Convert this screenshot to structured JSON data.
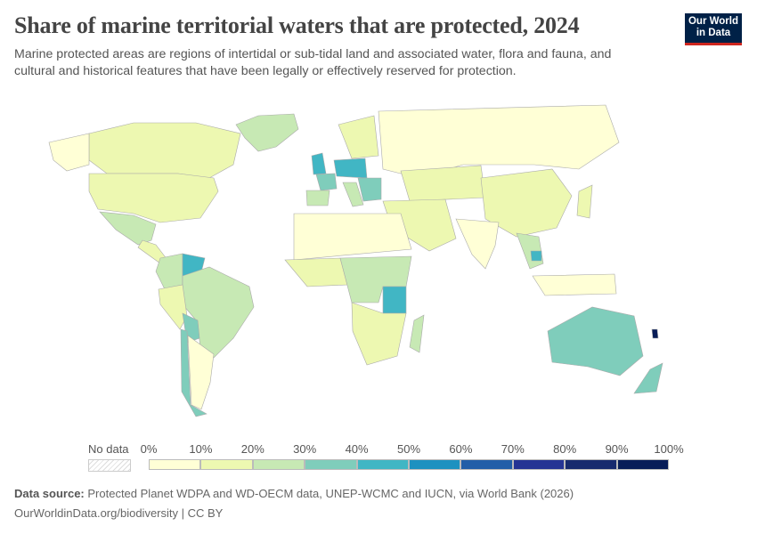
{
  "title": "Share of marine territorial waters that are protected, 2024",
  "subtitle": "Marine protected areas are regions of intertidal or sub-tidal land and associated water, flora and fauna, and cultural and historical features that have been legally or effectively reserved for protection.",
  "logo": {
    "line1": "Our World",
    "line2": "in Data"
  },
  "legend": {
    "no_data": "No data",
    "ticks": [
      "0%",
      "10%",
      "20%",
      "30%",
      "40%",
      "50%",
      "60%",
      "70%",
      "80%",
      "90%",
      "100%"
    ],
    "colors": [
      "#ffffd6",
      "#edf8b1",
      "#c7e9b4",
      "#7fcdbb",
      "#41b6c4",
      "#1d91c0",
      "#225ea8",
      "#253494",
      "#172a6e",
      "#081d58"
    ]
  },
  "footer": {
    "source_label": "Data source:",
    "source_text": "Protected Planet WDPA and WD-OECM data, UNEP-WCMC and IUCN, via World Bank (2026)",
    "url": "OurWorldinData.org/biodiversity | CC BY"
  },
  "chart_data": {
    "type": "choropleth",
    "unit": "%",
    "scale": [
      0,
      100
    ],
    "bin_step": 10,
    "values": {
      "Greenland": 25,
      "Canada": 10,
      "Alaska (US)": 5,
      "United States": 15,
      "Mexico": 22,
      "Central America": 18,
      "Colombia": 22,
      "Venezuela": 45,
      "Brazil": 25,
      "Peru": 12,
      "Bolivia": 35,
      "Chile": 35,
      "Argentina": 5,
      "United Kingdom": 45,
      "France": 35,
      "Spain": 25,
      "Germany/Poland": 45,
      "Scandinavia": 12,
      "Italy": 22,
      "Balkans": 32,
      "Russia": 3,
      "Central Asia": 12,
      "Middle East": 12,
      "China": 15,
      "India": 4,
      "Southeast Asia": 22,
      "Cambodia": 45,
      "Indonesia": 4,
      "Japan": 12,
      "North Africa": 4,
      "West Africa": 12,
      "Central Africa": 22,
      "East Africa": 45,
      "Southern Africa": 12,
      "Madagascar": 22,
      "Australia": 35,
      "New Zealand": 35,
      "New Caledonia": 95
    }
  }
}
